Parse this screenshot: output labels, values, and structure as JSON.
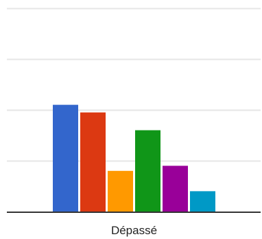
{
  "chart_data": {
    "type": "bar",
    "categories": [
      "Dépassé"
    ],
    "series": [
      {
        "values": [
          4.2
        ],
        "color": "#3366cc"
      },
      {
        "values": [
          3.9
        ],
        "color": "#dc3912"
      },
      {
        "values": [
          1.6
        ],
        "color": "#ff9900"
      },
      {
        "values": [
          3.2
        ],
        "color": "#109618"
      },
      {
        "values": [
          1.8
        ],
        "color": "#990099"
      },
      {
        "values": [
          0.8
        ],
        "color": "#0099c6"
      }
    ],
    "ylim": [
      0,
      8
    ],
    "gridlines": [
      2,
      4,
      6,
      8
    ],
    "grid": true,
    "title": "",
    "xlabel": "",
    "ylabel": ""
  }
}
